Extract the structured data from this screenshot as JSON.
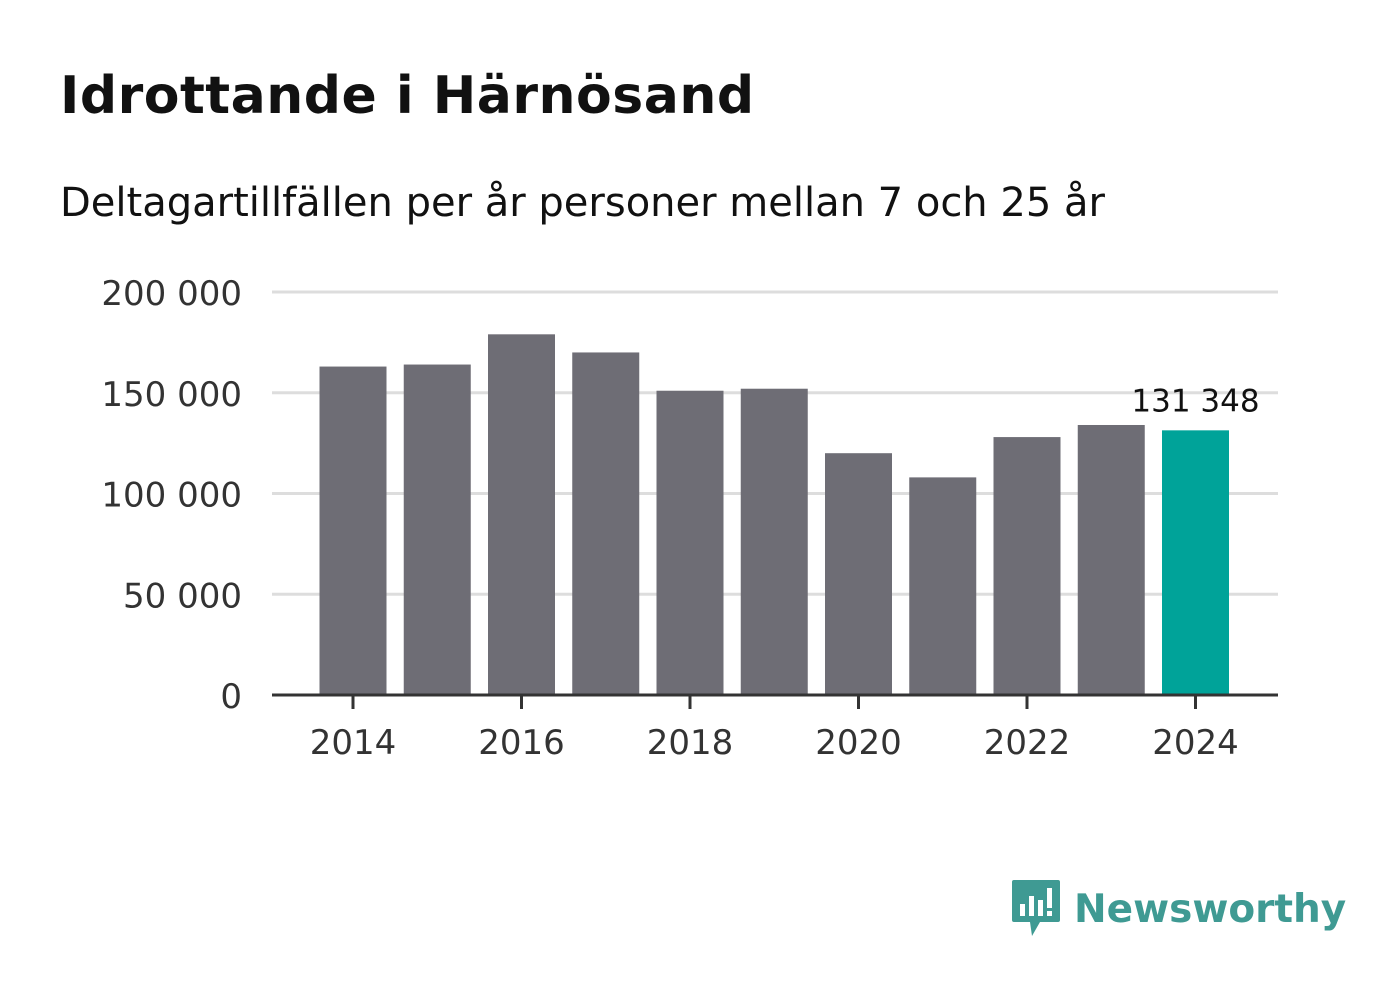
{
  "title": "Idrottande i Härnösand",
  "subtitle": "Deltagartillfällen per år personer mellan 7 och 25 år",
  "brand": {
    "name": "Newsworthy",
    "color": "#3f9a93",
    "icon": "newsworthy-logo-icon"
  },
  "chart_data": {
    "type": "bar",
    "title": "Idrottande i Härnösand",
    "subtitle": "Deltagartillfällen per år personer mellan 7 och 25 år",
    "xlabel": "",
    "ylabel": "",
    "categories": [
      "2014",
      "2015",
      "2016",
      "2017",
      "2018",
      "2019",
      "2020",
      "2021",
      "2022",
      "2023",
      "2024"
    ],
    "values": [
      163000,
      164000,
      179000,
      170000,
      151000,
      152000,
      120000,
      108000,
      128000,
      134000,
      131348
    ],
    "ylim": [
      0,
      200000
    ],
    "yticks": [
      0,
      50000,
      100000,
      150000,
      200000
    ],
    "ytick_labels": [
      "0",
      "50 000",
      "100 000",
      "150 000",
      "200 000"
    ],
    "xtick_labels": [
      "2014",
      "2016",
      "2018",
      "2020",
      "2022",
      "2024"
    ],
    "highlight_index": 10,
    "highlight_label": "131 348",
    "grid": true,
    "colors": {
      "bar": "#6e6d75",
      "highlight": "#00a399",
      "grid": "#dddddd",
      "axis": "#333333",
      "text": "#333333"
    }
  }
}
